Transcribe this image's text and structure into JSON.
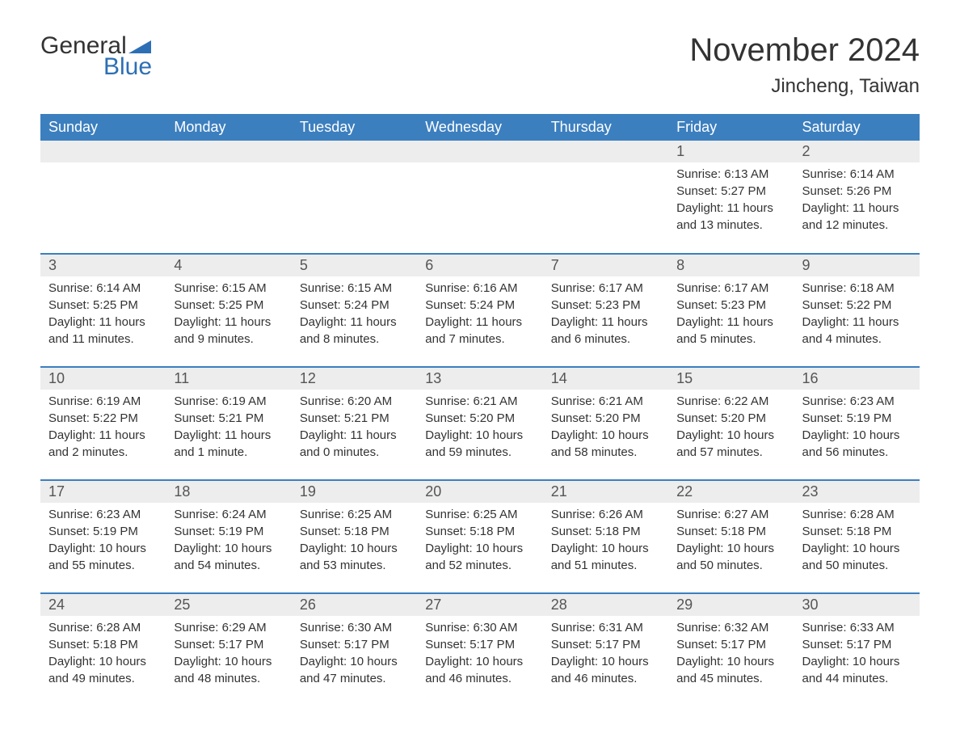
{
  "logo": {
    "text_general": "General",
    "text_blue": "Blue",
    "icon_color": "#2d6fb5"
  },
  "title": "November 2024",
  "location": "Jincheng, Taiwan",
  "colors": {
    "header_bg": "#3c7fbf",
    "header_text": "#ffffff",
    "day_number_bg": "#ededed",
    "row_border": "#3c7fbf",
    "body_text": "#333333",
    "background": "#ffffff"
  },
  "days_of_week": [
    "Sunday",
    "Monday",
    "Tuesday",
    "Wednesday",
    "Thursday",
    "Friday",
    "Saturday"
  ],
  "weeks": [
    [
      null,
      null,
      null,
      null,
      null,
      {
        "n": "1",
        "sunrise": "6:13 AM",
        "sunset": "5:27 PM",
        "daylight": "11 hours and 13 minutes."
      },
      {
        "n": "2",
        "sunrise": "6:14 AM",
        "sunset": "5:26 PM",
        "daylight": "11 hours and 12 minutes."
      }
    ],
    [
      {
        "n": "3",
        "sunrise": "6:14 AM",
        "sunset": "5:25 PM",
        "daylight": "11 hours and 11 minutes."
      },
      {
        "n": "4",
        "sunrise": "6:15 AM",
        "sunset": "5:25 PM",
        "daylight": "11 hours and 9 minutes."
      },
      {
        "n": "5",
        "sunrise": "6:15 AM",
        "sunset": "5:24 PM",
        "daylight": "11 hours and 8 minutes."
      },
      {
        "n": "6",
        "sunrise": "6:16 AM",
        "sunset": "5:24 PM",
        "daylight": "11 hours and 7 minutes."
      },
      {
        "n": "7",
        "sunrise": "6:17 AM",
        "sunset": "5:23 PM",
        "daylight": "11 hours and 6 minutes."
      },
      {
        "n": "8",
        "sunrise": "6:17 AM",
        "sunset": "5:23 PM",
        "daylight": "11 hours and 5 minutes."
      },
      {
        "n": "9",
        "sunrise": "6:18 AM",
        "sunset": "5:22 PM",
        "daylight": "11 hours and 4 minutes."
      }
    ],
    [
      {
        "n": "10",
        "sunrise": "6:19 AM",
        "sunset": "5:22 PM",
        "daylight": "11 hours and 2 minutes."
      },
      {
        "n": "11",
        "sunrise": "6:19 AM",
        "sunset": "5:21 PM",
        "daylight": "11 hours and 1 minute."
      },
      {
        "n": "12",
        "sunrise": "6:20 AM",
        "sunset": "5:21 PM",
        "daylight": "11 hours and 0 minutes."
      },
      {
        "n": "13",
        "sunrise": "6:21 AM",
        "sunset": "5:20 PM",
        "daylight": "10 hours and 59 minutes."
      },
      {
        "n": "14",
        "sunrise": "6:21 AM",
        "sunset": "5:20 PM",
        "daylight": "10 hours and 58 minutes."
      },
      {
        "n": "15",
        "sunrise": "6:22 AM",
        "sunset": "5:20 PM",
        "daylight": "10 hours and 57 minutes."
      },
      {
        "n": "16",
        "sunrise": "6:23 AM",
        "sunset": "5:19 PM",
        "daylight": "10 hours and 56 minutes."
      }
    ],
    [
      {
        "n": "17",
        "sunrise": "6:23 AM",
        "sunset": "5:19 PM",
        "daylight": "10 hours and 55 minutes."
      },
      {
        "n": "18",
        "sunrise": "6:24 AM",
        "sunset": "5:19 PM",
        "daylight": "10 hours and 54 minutes."
      },
      {
        "n": "19",
        "sunrise": "6:25 AM",
        "sunset": "5:18 PM",
        "daylight": "10 hours and 53 minutes."
      },
      {
        "n": "20",
        "sunrise": "6:25 AM",
        "sunset": "5:18 PM",
        "daylight": "10 hours and 52 minutes."
      },
      {
        "n": "21",
        "sunrise": "6:26 AM",
        "sunset": "5:18 PM",
        "daylight": "10 hours and 51 minutes."
      },
      {
        "n": "22",
        "sunrise": "6:27 AM",
        "sunset": "5:18 PM",
        "daylight": "10 hours and 50 minutes."
      },
      {
        "n": "23",
        "sunrise": "6:28 AM",
        "sunset": "5:18 PM",
        "daylight": "10 hours and 50 minutes."
      }
    ],
    [
      {
        "n": "24",
        "sunrise": "6:28 AM",
        "sunset": "5:18 PM",
        "daylight": "10 hours and 49 minutes."
      },
      {
        "n": "25",
        "sunrise": "6:29 AM",
        "sunset": "5:17 PM",
        "daylight": "10 hours and 48 minutes."
      },
      {
        "n": "26",
        "sunrise": "6:30 AM",
        "sunset": "5:17 PM",
        "daylight": "10 hours and 47 minutes."
      },
      {
        "n": "27",
        "sunrise": "6:30 AM",
        "sunset": "5:17 PM",
        "daylight": "10 hours and 46 minutes."
      },
      {
        "n": "28",
        "sunrise": "6:31 AM",
        "sunset": "5:17 PM",
        "daylight": "10 hours and 46 minutes."
      },
      {
        "n": "29",
        "sunrise": "6:32 AM",
        "sunset": "5:17 PM",
        "daylight": "10 hours and 45 minutes."
      },
      {
        "n": "30",
        "sunrise": "6:33 AM",
        "sunset": "5:17 PM",
        "daylight": "10 hours and 44 minutes."
      }
    ]
  ],
  "labels": {
    "sunrise": "Sunrise:",
    "sunset": "Sunset:",
    "daylight": "Daylight:"
  }
}
